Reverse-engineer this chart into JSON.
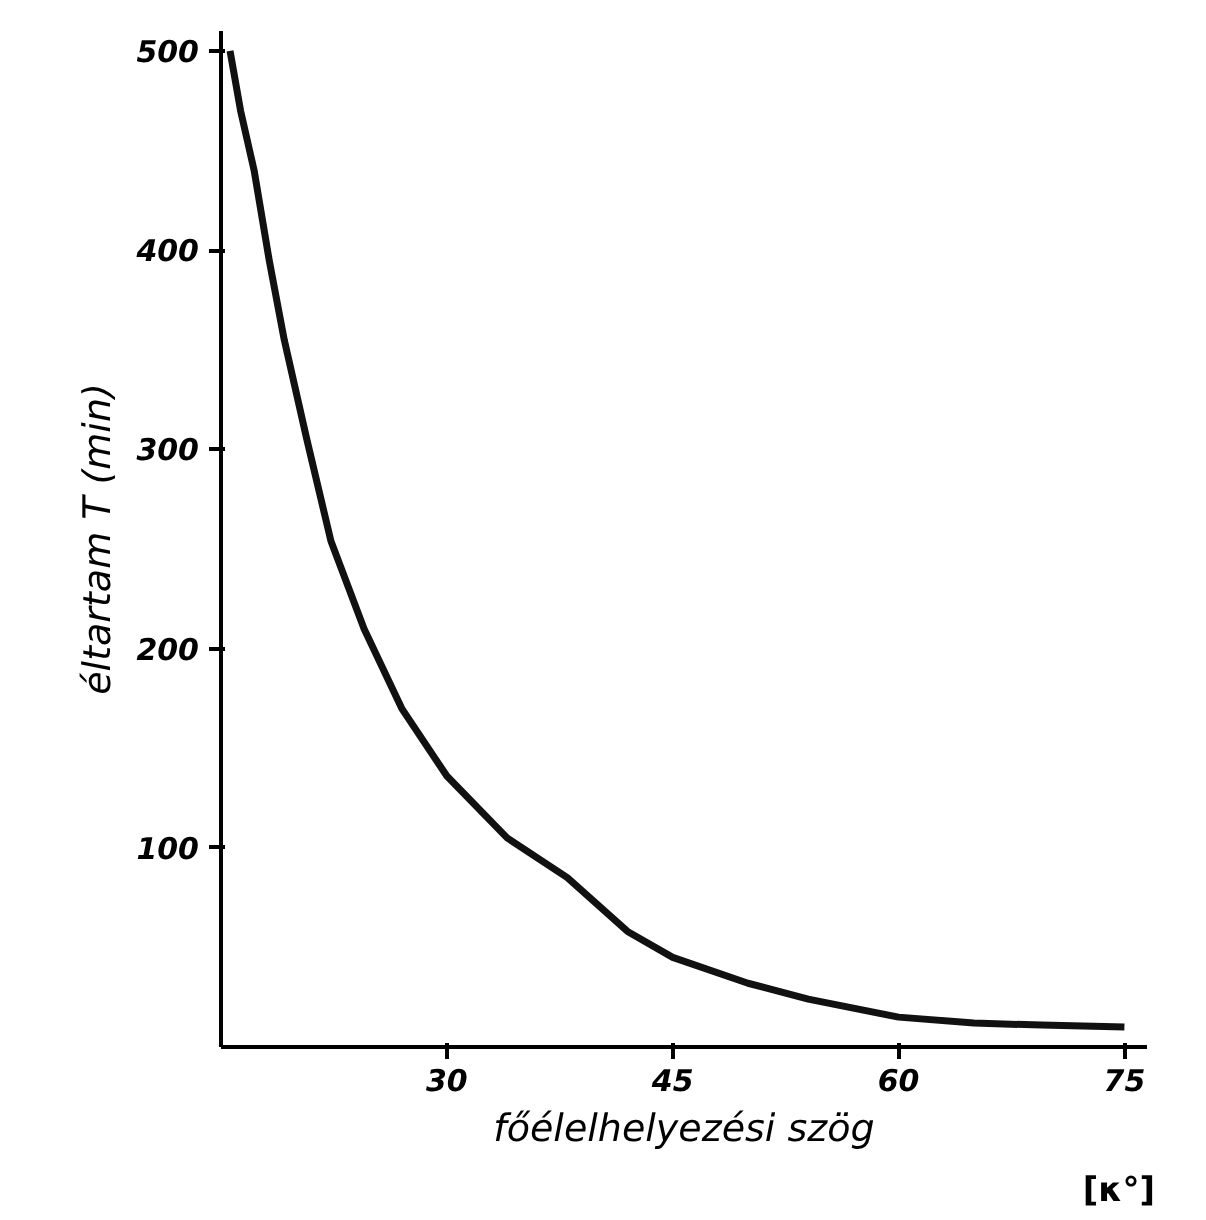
{
  "chart_data": {
    "type": "line",
    "xlabel": "főélelhelyezési szög",
    "ylabel": "éltartam T (min)",
    "annotations": [
      "[κ°]"
    ],
    "x": [
      15.6,
      16.3,
      17.2,
      18.2,
      19.2,
      20.7,
      22.3,
      24.5,
      27,
      30,
      34,
      38,
      42,
      45,
      50,
      54,
      60,
      65,
      69.5,
      75
    ],
    "series": [
      {
        "color": "#111111",
        "values": [
          500,
          470,
          440,
          395,
          355,
          305,
          254,
          210,
          170,
          136,
          105,
          85,
          58,
          45,
          32,
          24,
          15,
          12,
          11,
          10
        ]
      }
    ],
    "xlim": [
      15,
      76.5
    ],
    "ylim": [
      0,
      510
    ],
    "xticks": [
      30,
      45,
      60,
      75
    ],
    "yticks": [
      100,
      200,
      300,
      400,
      500
    ],
    "grid": false,
    "marker": "none",
    "line_style": "solid"
  }
}
